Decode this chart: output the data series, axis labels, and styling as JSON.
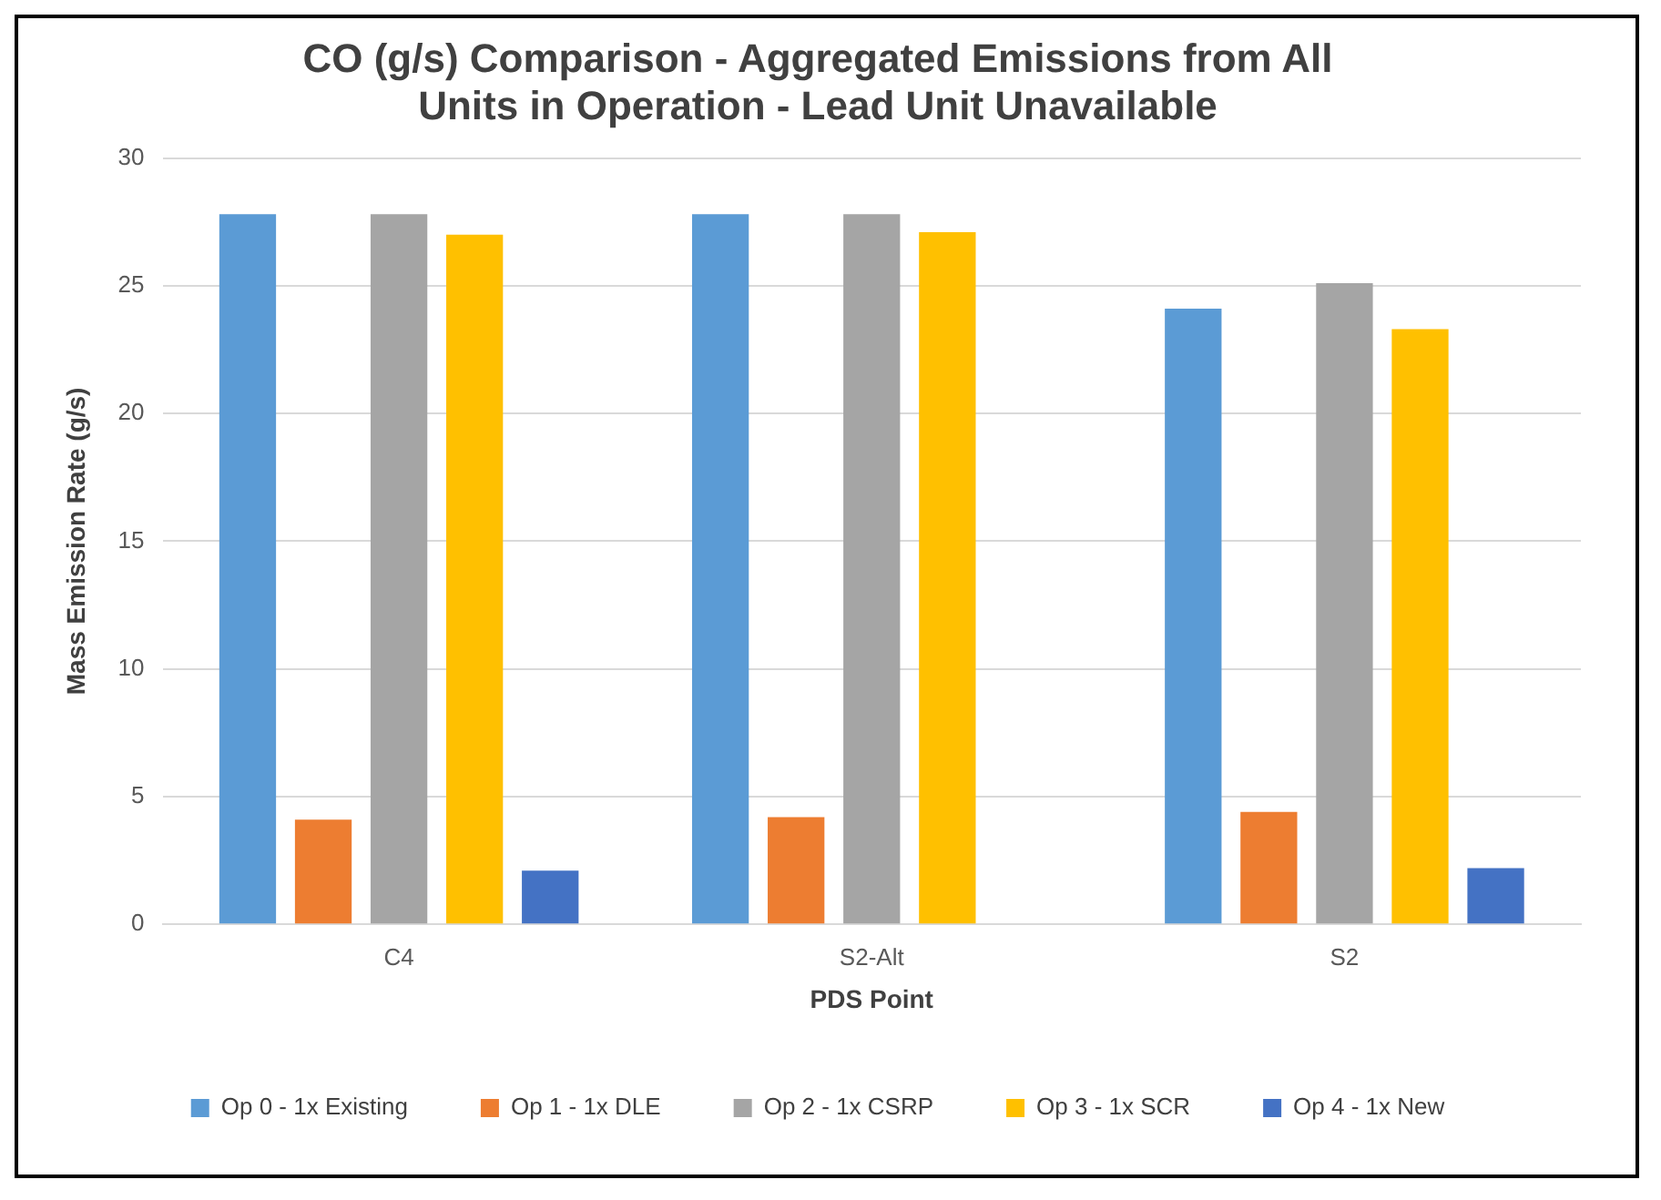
{
  "chart_data": {
    "type": "bar",
    "title": [
      "CO (g/s) Comparison - Aggregated Emissions from All",
      "Units in Operation - Lead Unit Unavailable"
    ],
    "xlabel": "PDS Point",
    "ylabel": "Mass Emission Rate (g/s)",
    "categories": [
      "C4",
      "S2-Alt",
      "S2"
    ],
    "series": [
      {
        "name": "Op 0 - 1x Existing",
        "color": "#5b9bd5",
        "values": [
          27.8,
          27.8,
          24.1
        ]
      },
      {
        "name": "Op 1 - 1x DLE",
        "color": "#ed7d31",
        "values": [
          4.1,
          4.2,
          4.4
        ]
      },
      {
        "name": "Op 2 - 1x CSRP",
        "color": "#a5a5a5",
        "values": [
          27.8,
          27.8,
          25.1
        ]
      },
      {
        "name": "Op 3 - 1x SCR",
        "color": "#ffc000",
        "values": [
          27.0,
          27.1,
          23.3
        ]
      },
      {
        "name": "Op 4 - 1x New",
        "color": "#4472c4",
        "values": [
          2.1,
          null,
          2.2
        ]
      }
    ],
    "ylim": [
      0,
      30
    ],
    "yticks": [
      0,
      5,
      10,
      15,
      20,
      25,
      30
    ],
    "grid": "y",
    "legend": "bottom"
  }
}
